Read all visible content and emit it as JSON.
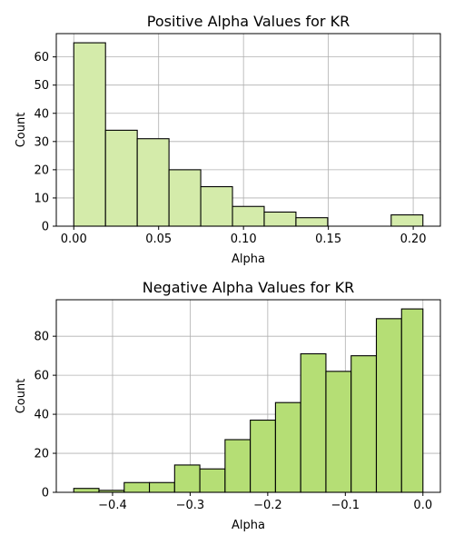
{
  "chart_data": [
    {
      "type": "bar",
      "subtype": "histogram",
      "title": "Positive Alpha Values for KR",
      "xlabel": "Alpha",
      "ylabel": "Count",
      "bin_edges": [
        0.0,
        0.0187,
        0.0374,
        0.0561,
        0.0748,
        0.0935,
        0.1122,
        0.1309,
        0.1496,
        0.1683,
        0.187,
        0.2057
      ],
      "values": [
        65,
        34,
        31,
        20,
        14,
        7,
        5,
        3,
        0,
        0,
        4
      ],
      "xlim": [
        -0.0103,
        0.216
      ],
      "ylim": [
        0,
        68.25
      ],
      "xticks": [
        0.0,
        0.05,
        0.1,
        0.15,
        0.2
      ],
      "xtick_labels": [
        "0.00",
        "0.05",
        "0.10",
        "0.15",
        "0.20"
      ],
      "yticks": [
        0,
        10,
        20,
        30,
        40,
        50,
        60
      ],
      "ytick_labels": [
        "0",
        "10",
        "20",
        "30",
        "40",
        "50",
        "60"
      ],
      "grid": true,
      "bar_color": "#d4ebaa",
      "edge_color": "#000000"
    },
    {
      "type": "bar",
      "subtype": "histogram",
      "title": "Negative Alpha Values for KR",
      "xlabel": "Alpha",
      "ylabel": "Count",
      "bin_edges": [
        -0.45,
        -0.4175,
        -0.385,
        -0.3525,
        -0.32,
        -0.2875,
        -0.255,
        -0.2225,
        -0.19,
        -0.1575,
        -0.125,
        -0.0925,
        -0.06,
        -0.0275,
        0.0
      ],
      "values": [
        2,
        1,
        5,
        5,
        14,
        12,
        27,
        37,
        46,
        71,
        62,
        70,
        89,
        94
      ],
      "xlim": [
        -0.4725,
        0.0225
      ],
      "ylim": [
        0,
        98.7
      ],
      "xticks": [
        -0.4,
        -0.3,
        -0.2,
        -0.1,
        0.0
      ],
      "xtick_labels": [
        "−0.4",
        "−0.3",
        "−0.2",
        "−0.1",
        "0.0"
      ],
      "yticks": [
        0,
        20,
        40,
        60,
        80
      ],
      "ytick_labels": [
        "0",
        "20",
        "40",
        "60",
        "80"
      ],
      "grid": true,
      "bar_color": "#b5de75",
      "edge_color": "#000000"
    }
  ]
}
